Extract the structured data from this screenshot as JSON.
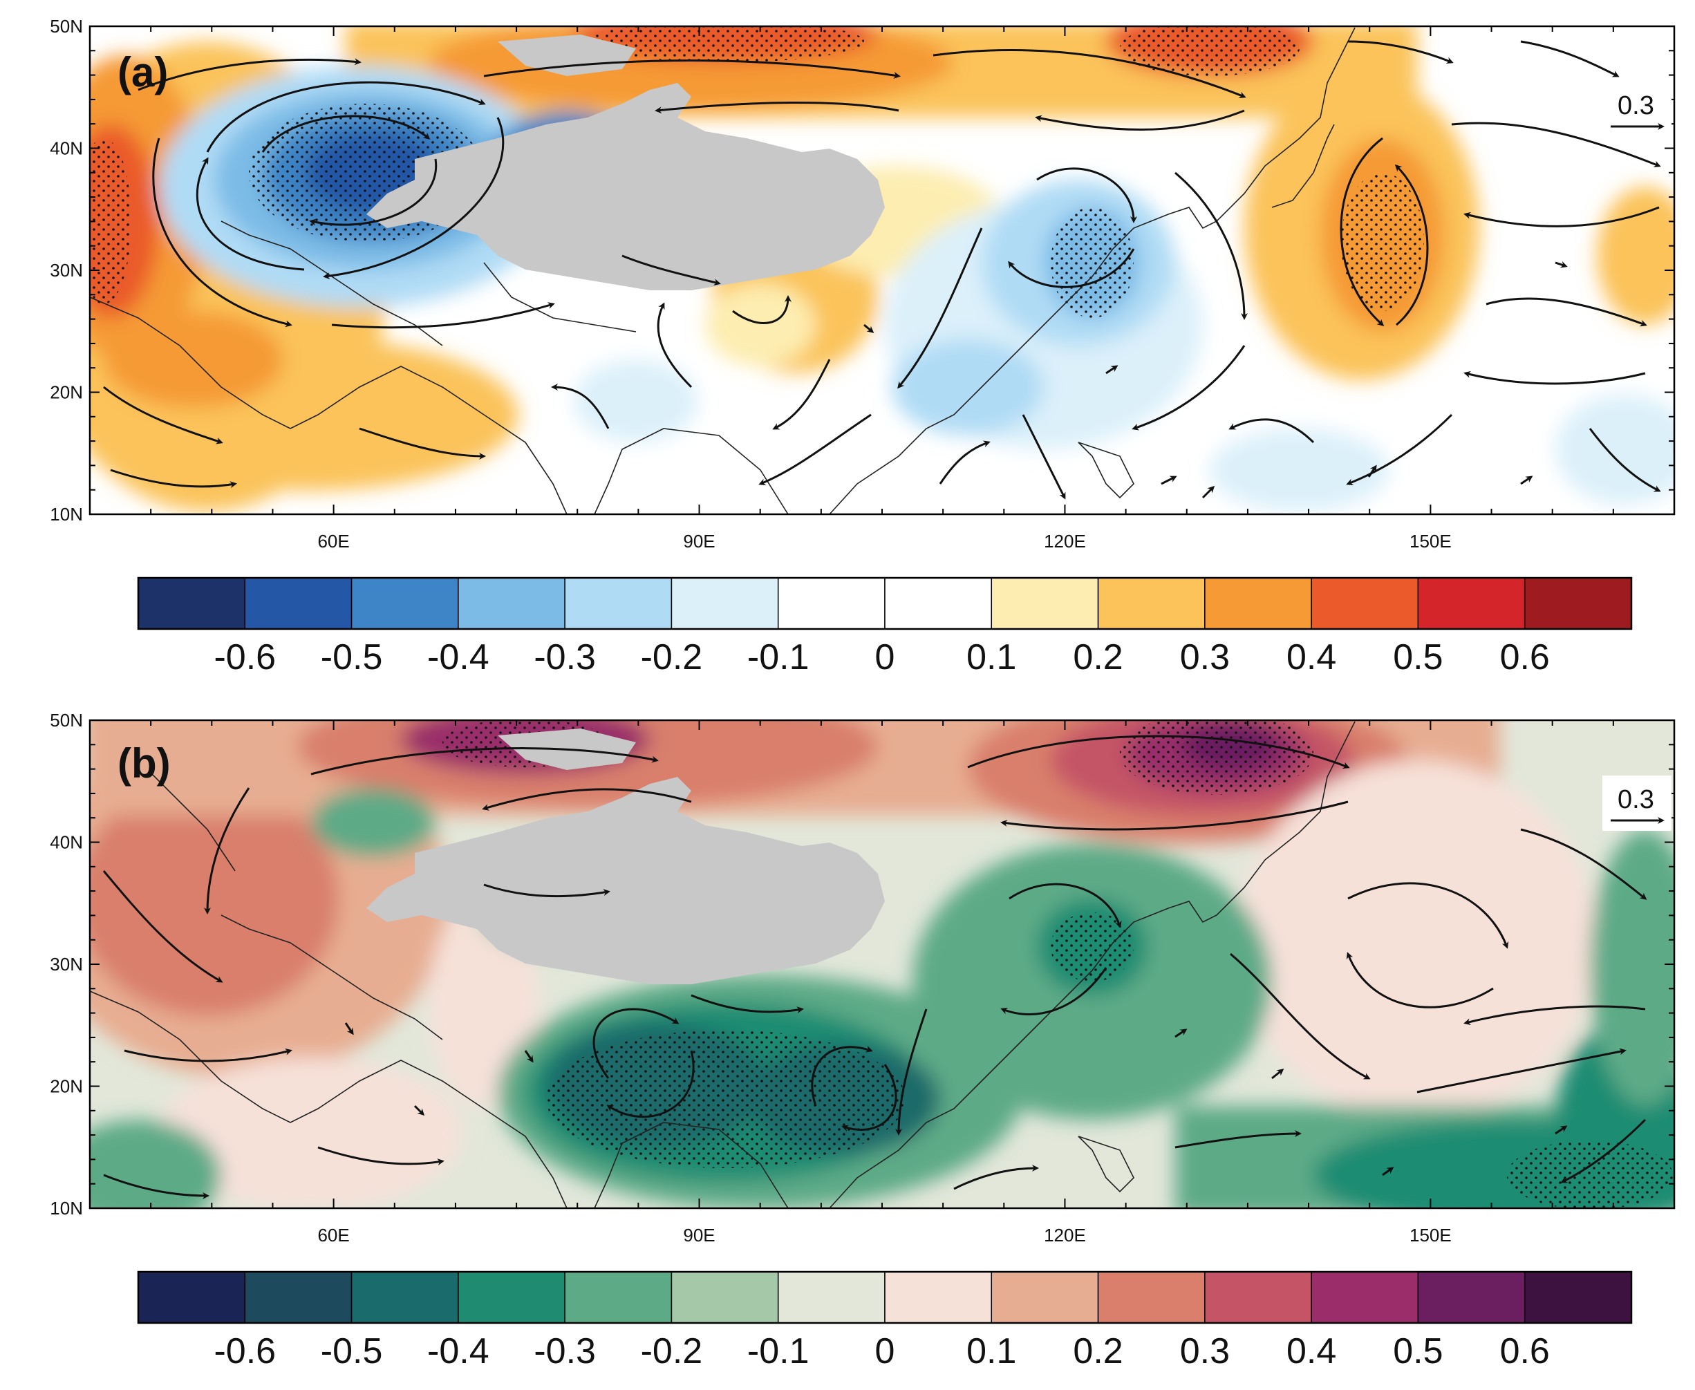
{
  "figure": {
    "panels": [
      {
        "id": "a",
        "label": "(a)",
        "vector_ref": "0.3",
        "lat_ticks": [
          "50N",
          "40N",
          "30N",
          "20N",
          "10N"
        ],
        "lon_ticks": [
          "60E",
          "90E",
          "120E",
          "150E"
        ],
        "colorbar_labels": [
          "-0.6",
          "-0.5",
          "-0.4",
          "-0.3",
          "-0.2",
          "-0.1",
          "0",
          "0.1",
          "0.2",
          "0.3",
          "0.4",
          "0.5",
          "0.6"
        ],
        "colorbar_colors": [
          "#1c3268",
          "#2457a6",
          "#3d85c6",
          "#7bbbe6",
          "#b0dbf5",
          "#dcf0fa",
          "#ffffff",
          "#ffffff",
          "#fdedb0",
          "#fbc35a",
          "#f59a35",
          "#ea5a2a",
          "#d4252a",
          "#9e1b1f"
        ],
        "plateau_color": "#c8c8c8"
      },
      {
        "id": "b",
        "label": "(b)",
        "vector_ref": "0.3",
        "lat_ticks": [
          "50N",
          "40N",
          "30N",
          "20N",
          "10N"
        ],
        "lon_ticks": [
          "60E",
          "90E",
          "120E",
          "150E"
        ],
        "colorbar_labels": [
          "-0.6",
          "-0.5",
          "-0.4",
          "-0.3",
          "-0.2",
          "-0.1",
          "0",
          "0.1",
          "0.2",
          "0.3",
          "0.4",
          "0.5",
          "0.6"
        ],
        "colorbar_colors": [
          "#1b2555",
          "#1e4a5e",
          "#1a6b6b",
          "#1f8c72",
          "#5daa87",
          "#a4c8a8",
          "#e2e7da",
          "#f6e1d9",
          "#e7ad92",
          "#d97f6c",
          "#c45466",
          "#9a2d6a",
          "#6b1e60",
          "#3d1240"
        ],
        "plateau_color": "#c8c8c8"
      }
    ]
  }
}
